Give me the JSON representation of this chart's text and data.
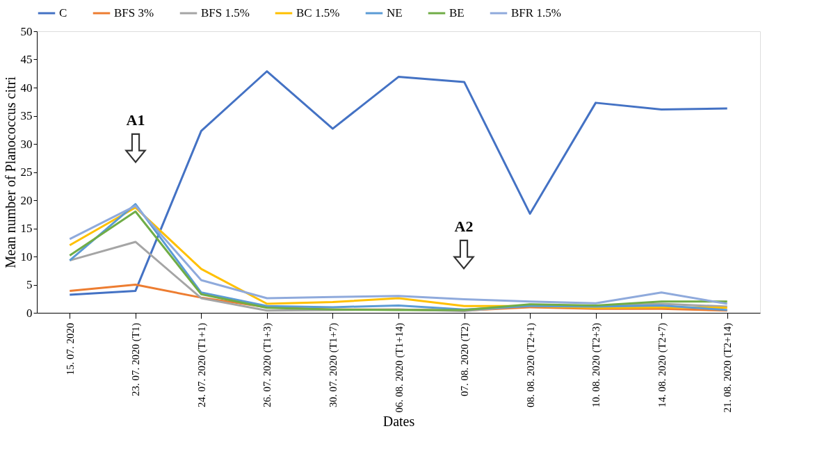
{
  "chart_data": {
    "type": "line",
    "xlabel": "Dates",
    "ylabel": "Mean number of Planococcus citri",
    "categories": [
      "15. 07. 2020",
      "23. 07. 2020 (T1)",
      "24. 07. 2020 (T1+1)",
      "26. 07. 2020 (T1+3)",
      "30. 07. 2020 (T1+7)",
      "06. 08. 2020 (T1+14)",
      "07. 08. 2020 (T2)",
      "08. 08. 2020 (T2+1)",
      "10. 08. 2020 (T2+3)",
      "14. 08. 2020 (T2+7)",
      "21. 08. 2020 (T2+14)"
    ],
    "series": [
      {
        "name": "C",
        "color": "#4472c4",
        "values": [
          3.2,
          3.9,
          32.3,
          42.9,
          32.7,
          41.9,
          41.0,
          17.6,
          37.3,
          36.1,
          36.3
        ]
      },
      {
        "name": "BFS 3%",
        "color": "#ed7d31",
        "values": [
          3.9,
          5.0,
          2.7,
          1.0,
          0.6,
          0.6,
          0.4,
          1.0,
          0.7,
          0.7,
          0.4
        ]
      },
      {
        "name": "BFS 1.5%",
        "color": "#a5a5a5",
        "values": [
          9.3,
          12.6,
          2.6,
          0.4,
          0.5,
          0.6,
          0.3,
          1.3,
          1.2,
          1.6,
          1.1
        ]
      },
      {
        "name": "BC 1.5%",
        "color": "#ffc000",
        "values": [
          12.0,
          18.7,
          7.8,
          1.6,
          1.9,
          2.6,
          1.2,
          1.2,
          0.9,
          1.0,
          0.9
        ]
      },
      {
        "name": "NE",
        "color": "#5b9bd5",
        "values": [
          9.3,
          19.3,
          3.6,
          1.2,
          1.0,
          1.3,
          0.6,
          1.2,
          1.1,
          1.3,
          0.5
        ]
      },
      {
        "name": "BE",
        "color": "#70ad47",
        "values": [
          10.2,
          18.0,
          3.3,
          0.9,
          0.6,
          0.5,
          0.5,
          1.5,
          1.3,
          2.0,
          2.0
        ]
      },
      {
        "name": "BFR 1.5%",
        "color": "#8faadc",
        "values": [
          13.1,
          19.0,
          5.8,
          2.6,
          2.8,
          3.0,
          2.4,
          2.0,
          1.7,
          3.6,
          1.6
        ]
      }
    ],
    "ylim": [
      0,
      50
    ],
    "yticks": [
      0,
      5,
      10,
      15,
      20,
      25,
      30,
      35,
      40,
      45,
      50
    ],
    "grid": false,
    "legend": "top",
    "marker": "none",
    "line_style": "solid",
    "annotations": [
      "A1",
      "A2"
    ]
  }
}
